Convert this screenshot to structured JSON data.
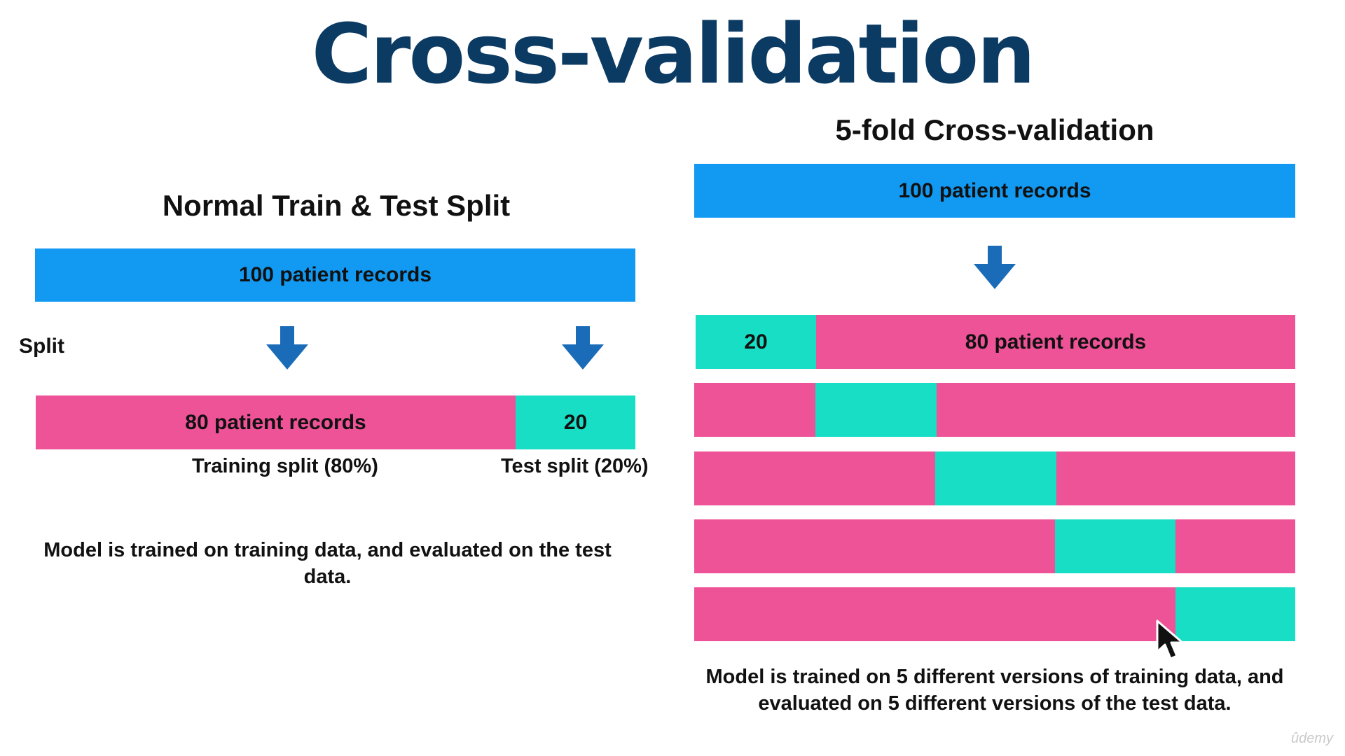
{
  "title": "Cross-validation",
  "left": {
    "heading": "Normal Train & Test Split",
    "full_bar_label": "100 patient records",
    "split_label": "Split",
    "train_bar_label": "80 patient records",
    "test_bar_label": "20",
    "train_caption": "Training split (80%)",
    "test_caption": "Test split (20%)",
    "note": "Model is trained on training data, and evaluated on the test data."
  },
  "right": {
    "heading": "5-fold Cross-validation",
    "full_bar_label": "100 patient records",
    "fold_test_label": "20",
    "fold_train_label": "80 patient records",
    "folds": 5,
    "note_line1": "Model is trained on 5 different versions of training data, and",
    "note_line2": "evaluated on 5 different versions of the test data."
  },
  "colors": {
    "title": "#0b3a63",
    "records": "#1299f2",
    "train": "#ee5297",
    "test": "#17dec5",
    "arrow": "#1a6cb8"
  },
  "watermark": "ûdemy"
}
